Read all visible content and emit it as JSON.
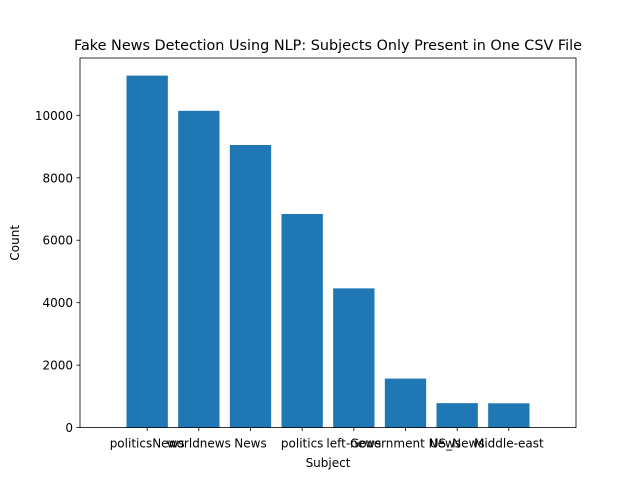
{
  "chart_data": {
    "type": "bar",
    "title": "Fake News Detection Using NLP: Subjects Only Present in One CSV File",
    "xlabel": "Subject",
    "ylabel": "Count",
    "categories": [
      "politicsNews",
      "worldnews",
      "News",
      "politics",
      "left-news",
      "Government News",
      "US_News",
      "Middle-east"
    ],
    "values": [
      11272,
      10145,
      9050,
      6841,
      4459,
      1570,
      783,
      778
    ],
    "ylim": [
      0,
      11836
    ],
    "yticks": [
      0,
      2000,
      4000,
      6000,
      8000,
      10000
    ],
    "grid": false,
    "bar_color": "#1f77b4"
  }
}
